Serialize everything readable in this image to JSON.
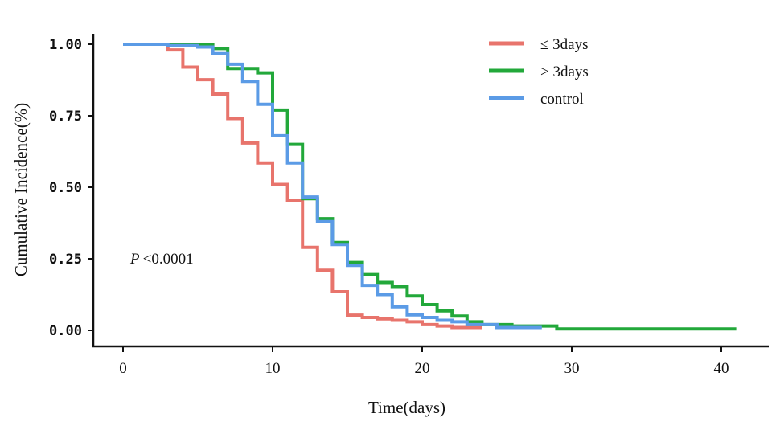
{
  "chart_data": {
    "type": "line",
    "step": true,
    "xlabel": "Time(days)",
    "ylabel": "Cumulative Incidence(%)",
    "xlim": [
      -2,
      43
    ],
    "ylim": [
      -0.05,
      1.03
    ],
    "x_ticks": [
      0,
      10,
      20,
      30,
      40
    ],
    "x_tick_labels": [
      "0",
      "10",
      "20",
      "30",
      "40"
    ],
    "y_ticks": [
      0,
      0.25,
      0.5,
      0.75,
      1.0
    ],
    "y_tick_labels": [
      "0.00",
      "0.25",
      "0.50",
      "0.75",
      "1.00"
    ],
    "grid": false,
    "legend_position": "top-right",
    "annotation": {
      "italic": "P",
      "text": "<0.0001"
    },
    "series": [
      {
        "name": "≤ 3days",
        "color": "#E8746C",
        "x": [
          0,
          3,
          4,
          5,
          6,
          7,
          8,
          9,
          10,
          11,
          12,
          13,
          14,
          15,
          16,
          17,
          18,
          19,
          20,
          21,
          22,
          24
        ],
        "y": [
          1.0,
          0.98,
          0.92,
          0.876,
          0.826,
          0.74,
          0.655,
          0.585,
          0.51,
          0.455,
          0.29,
          0.21,
          0.135,
          0.053,
          0.045,
          0.04,
          0.035,
          0.03,
          0.02,
          0.015,
          0.01,
          0.01
        ]
      },
      {
        "name": "> 3days",
        "color": "#22A83A",
        "x": [
          0,
          6,
          7,
          9,
          10,
          11,
          12,
          13,
          14,
          15,
          16,
          17,
          18,
          19,
          20,
          21,
          22,
          23,
          24,
          26,
          29,
          41
        ],
        "y": [
          1.0,
          0.985,
          0.915,
          0.9,
          0.77,
          0.65,
          0.46,
          0.39,
          0.307,
          0.237,
          0.195,
          0.167,
          0.153,
          0.12,
          0.09,
          0.068,
          0.05,
          0.03,
          0.02,
          0.015,
          0.005,
          0.005
        ]
      },
      {
        "name": "control",
        "color": "#5B9BE6",
        "x": [
          0,
          3,
          5,
          6,
          7,
          8,
          9,
          10,
          11,
          12,
          13,
          14,
          15,
          16,
          17,
          18,
          19,
          20,
          21,
          22,
          23,
          25,
          28
        ],
        "y": [
          1.0,
          0.995,
          0.99,
          0.967,
          0.93,
          0.87,
          0.79,
          0.68,
          0.585,
          0.466,
          0.38,
          0.3,
          0.227,
          0.157,
          0.125,
          0.082,
          0.054,
          0.045,
          0.035,
          0.03,
          0.02,
          0.01,
          0.01
        ]
      }
    ]
  }
}
